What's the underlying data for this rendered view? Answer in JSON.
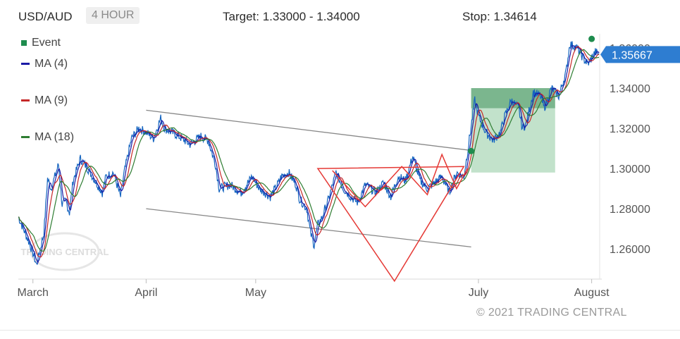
{
  "header": {
    "symbol": "USD/AUD",
    "period": "4 HOUR",
    "target": "Target: 1.33000 - 1.34000",
    "stop": "Stop: 1.34614"
  },
  "legend": {
    "event": "Event",
    "ma4": "MA (4)",
    "ma9": "MA (9)",
    "ma18": "MA (18)"
  },
  "watermark": "TRADING CENTRAL",
  "copyright": "© 2021 TRADING CENTRAL",
  "colors": {
    "price": "#1565c0",
    "ma4": "#1a1aa6",
    "ma9": "#c62828",
    "ma18": "#2e7d32",
    "pattern": "#e53935",
    "channel": "#888888",
    "target_zone": "#a8d5b5",
    "stop_zone": "#4f9e68",
    "event_dot": "#1e8c4e",
    "price_tag": "#2e7dd1"
  },
  "chart_data": {
    "type": "line",
    "x_tick_labels": [
      "March",
      "April",
      "May",
      "July",
      "August"
    ],
    "y_tick_labels": [
      "1.26000",
      "1.28000",
      "1.30000",
      "1.32000",
      "1.34000",
      "1.36000"
    ],
    "ylim": [
      1.245,
      1.367
    ],
    "current_price": "1.35667",
    "x_domain": [
      "2021-02-25",
      "2021-08-03"
    ],
    "x_ticks": [
      "2021-03-01",
      "2021-04-01",
      "2021-05-01",
      "2021-07-01",
      "2021-08-01"
    ],
    "series": [
      {
        "name": "",
        "values": [
          [
            "2021-02-25",
            1.276
          ],
          [
            "2021-02-28",
            1.263
          ],
          [
            "2021-03-01",
            1.258
          ],
          [
            "2021-03-02",
            1.252
          ],
          [
            "2021-03-04",
            1.268
          ],
          [
            "2021-03-05",
            1.295
          ],
          [
            "2021-03-06",
            1.29
          ],
          [
            "2021-03-08",
            1.302
          ],
          [
            "2021-03-09",
            1.282
          ],
          [
            "2021-03-10",
            1.284
          ],
          [
            "2021-03-11",
            1.278
          ],
          [
            "2021-03-12",
            1.294
          ],
          [
            "2021-03-14",
            1.305
          ],
          [
            "2021-03-16",
            1.3
          ],
          [
            "2021-03-18",
            1.294
          ],
          [
            "2021-03-20",
            1.288
          ],
          [
            "2021-03-21",
            1.296
          ],
          [
            "2021-03-23",
            1.298
          ],
          [
            "2021-03-25",
            1.286
          ],
          [
            "2021-03-26",
            1.298
          ],
          [
            "2021-03-28",
            1.315
          ],
          [
            "2021-03-30",
            1.32
          ],
          [
            "2021-04-01",
            1.318
          ],
          [
            "2021-04-03",
            1.315
          ],
          [
            "2021-04-05",
            1.325
          ],
          [
            "2021-04-06",
            1.32
          ],
          [
            "2021-04-08",
            1.318
          ],
          [
            "2021-04-10",
            1.316
          ],
          [
            "2021-04-13",
            1.312
          ],
          [
            "2021-04-16",
            1.316
          ],
          [
            "2021-04-18",
            1.314
          ],
          [
            "2021-04-20",
            1.302
          ],
          [
            "2021-04-21",
            1.29
          ],
          [
            "2021-04-24",
            1.292
          ],
          [
            "2021-04-27",
            1.288
          ],
          [
            "2021-04-30",
            1.296
          ],
          [
            "2021-05-02",
            1.29
          ],
          [
            "2021-05-05",
            1.286
          ],
          [
            "2021-05-07",
            1.292
          ],
          [
            "2021-05-08",
            1.296
          ],
          [
            "2021-05-10",
            1.298
          ],
          [
            "2021-05-12",
            1.292
          ],
          [
            "2021-05-13",
            1.285
          ],
          [
            "2021-05-15",
            1.28
          ],
          [
            "2021-05-16",
            1.268
          ],
          [
            "2021-05-17",
            1.262
          ],
          [
            "2021-05-18",
            1.272
          ],
          [
            "2021-05-19",
            1.275
          ],
          [
            "2021-05-21",
            1.285
          ],
          [
            "2021-05-23",
            1.298
          ],
          [
            "2021-05-25",
            1.29
          ],
          [
            "2021-05-27",
            1.286
          ],
          [
            "2021-05-29",
            1.283
          ],
          [
            "2021-05-31",
            1.292
          ],
          [
            "2021-06-03",
            1.288
          ],
          [
            "2021-06-05",
            1.293
          ],
          [
            "2021-06-07",
            1.286
          ],
          [
            "2021-06-09",
            1.296
          ],
          [
            "2021-06-11",
            1.294
          ],
          [
            "2021-06-13",
            1.306
          ],
          [
            "2021-06-15",
            1.294
          ],
          [
            "2021-06-17",
            1.29
          ],
          [
            "2021-06-19",
            1.293
          ],
          [
            "2021-06-21",
            1.296
          ],
          [
            "2021-06-23",
            1.288
          ],
          [
            "2021-06-25",
            1.298
          ],
          [
            "2021-06-27",
            1.296
          ],
          [
            "2021-06-28",
            1.308
          ],
          [
            "2021-06-30",
            1.334
          ],
          [
            "2021-07-01",
            1.326
          ],
          [
            "2021-07-03",
            1.318
          ],
          [
            "2021-07-05",
            1.314
          ],
          [
            "2021-07-07",
            1.318
          ],
          [
            "2021-07-08",
            1.325
          ],
          [
            "2021-07-10",
            1.334
          ],
          [
            "2021-07-12",
            1.33
          ],
          [
            "2021-07-13",
            1.32
          ],
          [
            "2021-07-14",
            1.322
          ],
          [
            "2021-07-16",
            1.338
          ],
          [
            "2021-07-18",
            1.336
          ],
          [
            "2021-07-19",
            1.33
          ],
          [
            "2021-07-21",
            1.34
          ],
          [
            "2021-07-23",
            1.336
          ],
          [
            "2021-07-25",
            1.348
          ],
          [
            "2021-07-26",
            1.362
          ],
          [
            "2021-07-28",
            1.36
          ],
          [
            "2021-07-30",
            1.354
          ],
          [
            "2021-07-31",
            1.352
          ],
          [
            "2021-08-02",
            1.358
          ],
          [
            "2021-08-03",
            1.3567
          ]
        ]
      }
    ]
  }
}
